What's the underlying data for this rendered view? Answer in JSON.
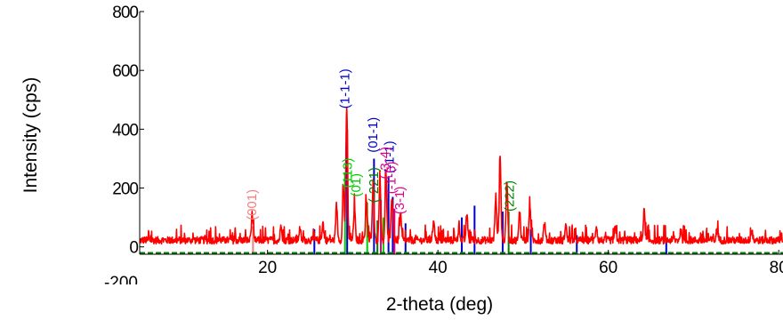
{
  "chart_data": {
    "type": "line",
    "xlabel": "2-theta (deg)",
    "ylabel": "Intensity (cps)",
    "xlim": [
      5,
      80.5
    ],
    "ylim": [
      -25,
      800
    ],
    "x_ticks": [
      20,
      40,
      60,
      80
    ],
    "y_ticks": [
      0,
      200,
      400,
      600,
      800
    ],
    "y_ticks_partial": [
      "-200"
    ],
    "grid": false,
    "legend": "none",
    "colors": {
      "measured": "#ff0000",
      "phase_blue": "#0000cc",
      "phase_green": "#00cc00",
      "phase_darkgreen": "#008000",
      "phase_magenta": "#dd0088",
      "phase_salmon": "#f08080"
    },
    "series": [
      {
        "color": "#ff0000",
        "baseline": 10,
        "noise_amplitude": 25,
        "peaks": [
          {
            "x": 18.2,
            "y": 90
          },
          {
            "x": 21.6,
            "y": 55
          },
          {
            "x": 23.8,
            "y": 40
          },
          {
            "x": 26.5,
            "y": 60
          },
          {
            "x": 28.1,
            "y": 120
          },
          {
            "x": 28.9,
            "y": 180
          },
          {
            "x": 29.3,
            "y": 455
          },
          {
            "x": 30.2,
            "y": 110
          },
          {
            "x": 31.6,
            "y": 140
          },
          {
            "x": 32.4,
            "y": 190
          },
          {
            "x": 33.2,
            "y": 215
          },
          {
            "x": 33.9,
            "y": 230
          },
          {
            "x": 34.6,
            "y": 150
          },
          {
            "x": 35.6,
            "y": 90
          },
          {
            "x": 39.5,
            "y": 70
          },
          {
            "x": 42.5,
            "y": 45
          },
          {
            "x": 43.4,
            "y": 85
          },
          {
            "x": 46.8,
            "y": 150
          },
          {
            "x": 47.3,
            "y": 280
          },
          {
            "x": 48.1,
            "y": 200
          },
          {
            "x": 49.6,
            "y": 100
          },
          {
            "x": 50.8,
            "y": 120
          },
          {
            "x": 52.5,
            "y": 60
          },
          {
            "x": 55.0,
            "y": 55
          },
          {
            "x": 58.6,
            "y": 50
          },
          {
            "x": 60.8,
            "y": 40
          },
          {
            "x": 64.2,
            "y": 100
          },
          {
            "x": 68.5,
            "y": 35
          },
          {
            "x": 72.8,
            "y": 40
          },
          {
            "x": 76.8,
            "y": 30
          }
        ]
      }
    ],
    "reference_lines": [
      {
        "color": "#0000cc",
        "x": 29.35,
        "y": 400
      },
      {
        "color": "#0000cc",
        "x": 32.5,
        "y": 300
      },
      {
        "color": "#0000cc",
        "x": 34.2,
        "y": 240
      },
      {
        "color": "#0000cc",
        "x": 34.7,
        "y": 170
      },
      {
        "color": "#0000cc",
        "x": 44.3,
        "y": 140
      },
      {
        "color": "#0000cc",
        "x": 42.8,
        "y": 100
      },
      {
        "color": "#0000cc",
        "x": 47.6,
        "y": 120
      },
      {
        "color": "#0000cc",
        "x": 25.5,
        "y": 60
      },
      {
        "color": "#0000cc",
        "x": 36.2,
        "y": 80
      },
      {
        "color": "#0000cc",
        "x": 50.9,
        "y": 60
      },
      {
        "color": "#0000cc",
        "x": 56.3,
        "y": 40
      },
      {
        "color": "#0000cc",
        "x": 66.8,
        "y": 30
      },
      {
        "color": "#00cc00",
        "x": 29.1,
        "y": 250
      },
      {
        "color": "#00cc00",
        "x": 31.7,
        "y": 150
      },
      {
        "color": "#00cc00",
        "x": 33.6,
        "y": 100
      },
      {
        "color": "#008000",
        "x": 48.3,
        "y": 120
      },
      {
        "color": "#008000",
        "x": 32.9,
        "y": 90
      },
      {
        "color": "#dd0088",
        "x": 33.3,
        "y": 160
      },
      {
        "color": "#dd0088",
        "x": 34.9,
        "y": 130
      },
      {
        "color": "#f08080",
        "x": 18.3,
        "y": 70
      }
    ],
    "annotations": [
      {
        "text": "(1-1-1)",
        "x": 29.6,
        "y": 470,
        "color": "#0000cc"
      },
      {
        "text": "(01-1)",
        "x": 32.9,
        "y": 320,
        "color": "#0000cc"
      },
      {
        "text": "(-1-1)",
        "x": 34.8,
        "y": 250,
        "color": "#0000cc"
      },
      {
        "text": "(001)",
        "x": 18.7,
        "y": 90,
        "color": "#f08080"
      },
      {
        "text": "(113)",
        "x": 29.9,
        "y": 200,
        "color": "#00cc00"
      },
      {
        "text": "(01)",
        "x": 30.9,
        "y": 170,
        "color": "#00cc00"
      },
      {
        "text": "(-221)",
        "x": 33.0,
        "y": 150,
        "color": "#008000"
      },
      {
        "text": "(-3-4)",
        "x": 34.3,
        "y": 230,
        "color": "#dd0088"
      },
      {
        "text": "(-1-5)",
        "x": 35.0,
        "y": 180,
        "color": "#dd0088"
      },
      {
        "text": "(3-1)",
        "x": 36.0,
        "y": 110,
        "color": "#dd0088"
      },
      {
        "text": "(222)",
        "x": 48.9,
        "y": 120,
        "color": "#008000"
      }
    ]
  }
}
